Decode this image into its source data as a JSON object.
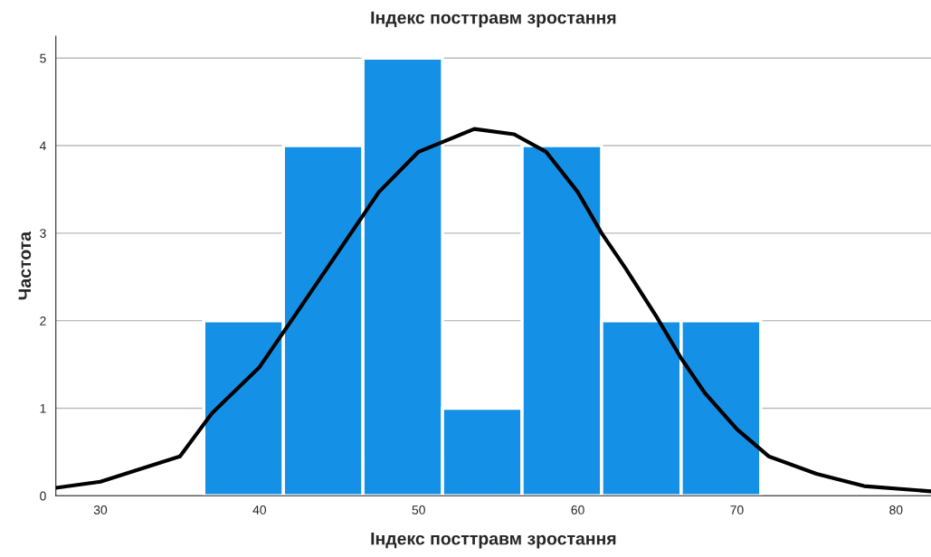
{
  "chart_data": {
    "type": "histogram",
    "title": "Індекс посттравм зростання",
    "xlabel": "Індекс посттравм зростання",
    "ylabel": "Частота",
    "bins": [
      36.5,
      41.5,
      46.5,
      51.5,
      56.5,
      61.5,
      66.5,
      71.5
    ],
    "values": [
      2,
      4,
      5,
      1,
      4,
      2,
      2
    ],
    "color": "#1490e6",
    "series": [
      {
        "type": "line",
        "color": "#000000",
        "x": [
          27.2,
          30,
          35,
          37,
          40,
          42,
          45,
          47.5,
          50,
          53.5,
          56,
          58,
          60,
          61.5,
          63,
          65,
          66.5,
          68,
          70,
          72,
          75,
          78,
          82.2
        ],
        "values": [
          0.09,
          0.16,
          0.45,
          0.94,
          1.47,
          2.0,
          2.8,
          3.47,
          3.93,
          4.19,
          4.13,
          3.93,
          3.47,
          3.0,
          2.6,
          2.03,
          1.57,
          1.17,
          0.76,
          0.45,
          0.25,
          0.11,
          0.05
        ]
      }
    ],
    "xlim": [
      27.2,
      82.2
    ],
    "xticks": [
      30,
      40,
      50,
      60,
      70,
      80
    ],
    "ylim": [
      0,
      5.25
    ],
    "yticks": [
      0,
      1,
      2,
      3,
      4,
      5
    ],
    "grid": "y",
    "marker": "none",
    "line_style": "solid",
    "legend": false
  }
}
